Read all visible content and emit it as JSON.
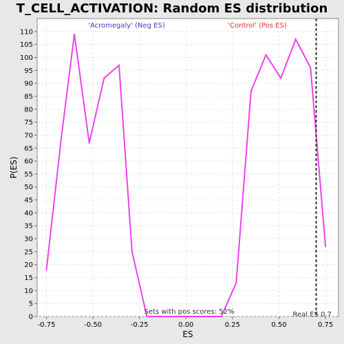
{
  "chart_data": {
    "type": "line",
    "title": "T_CELL_ACTIVATION: Random ES distribution",
    "xlabel": "ES",
    "ylabel": "P(ES)",
    "xlim": [
      -0.8,
      0.82
    ],
    "ylim": [
      0,
      115
    ],
    "xticks": [
      "-0.75",
      "-0.50",
      "-0.25",
      "0.00",
      "0.25",
      "0.50",
      "0.75"
    ],
    "xtick_values": [
      -0.75,
      -0.5,
      -0.25,
      0.0,
      0.25,
      0.5,
      0.75
    ],
    "yticks": [
      0,
      5,
      10,
      15,
      20,
      25,
      30,
      35,
      40,
      45,
      50,
      55,
      60,
      65,
      70,
      75,
      80,
      85,
      90,
      95,
      100,
      105,
      110
    ],
    "grid": true,
    "series": [
      {
        "color": "#ee40ee",
        "x": [
          -0.75,
          -0.67,
          -0.6,
          -0.52,
          -0.44,
          -0.36,
          -0.29,
          -0.21,
          -0.13,
          -0.05,
          0.03,
          0.11,
          0.19,
          0.27,
          0.35,
          0.43,
          0.51,
          0.59,
          0.67,
          0.75
        ],
        "y": [
          18,
          69,
          109,
          67,
          92,
          97,
          25,
          0,
          0,
          0,
          0,
          0,
          0,
          13,
          87,
          101,
          92,
          107,
          96,
          27
        ]
      }
    ],
    "real_es": {
      "value": 0.7,
      "label": "Real ES 0.7",
      "color": "#333333"
    },
    "annotations": {
      "neg_label": "'Acromegaly' (Neg ES)",
      "neg_color": "#3a3acc",
      "pos_label": "'Control' (Pos ES)",
      "pos_color": "#dd3333",
      "pos_scores": "Sets with pos scores: 52%"
    }
  }
}
